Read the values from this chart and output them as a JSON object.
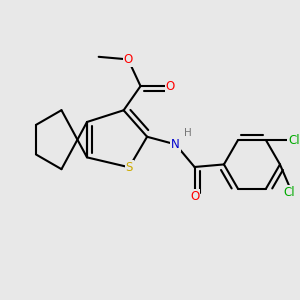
{
  "background_color": "#e8e8e8",
  "bond_color": "#000000",
  "atom_colors": {
    "O": "#ff0000",
    "N": "#0000cd",
    "S": "#ccaa00",
    "Cl": "#00aa00",
    "H": "#777777"
  },
  "figsize": [
    3.0,
    3.0
  ],
  "dpi": 100,
  "lw": 1.5,
  "do": 0.018
}
